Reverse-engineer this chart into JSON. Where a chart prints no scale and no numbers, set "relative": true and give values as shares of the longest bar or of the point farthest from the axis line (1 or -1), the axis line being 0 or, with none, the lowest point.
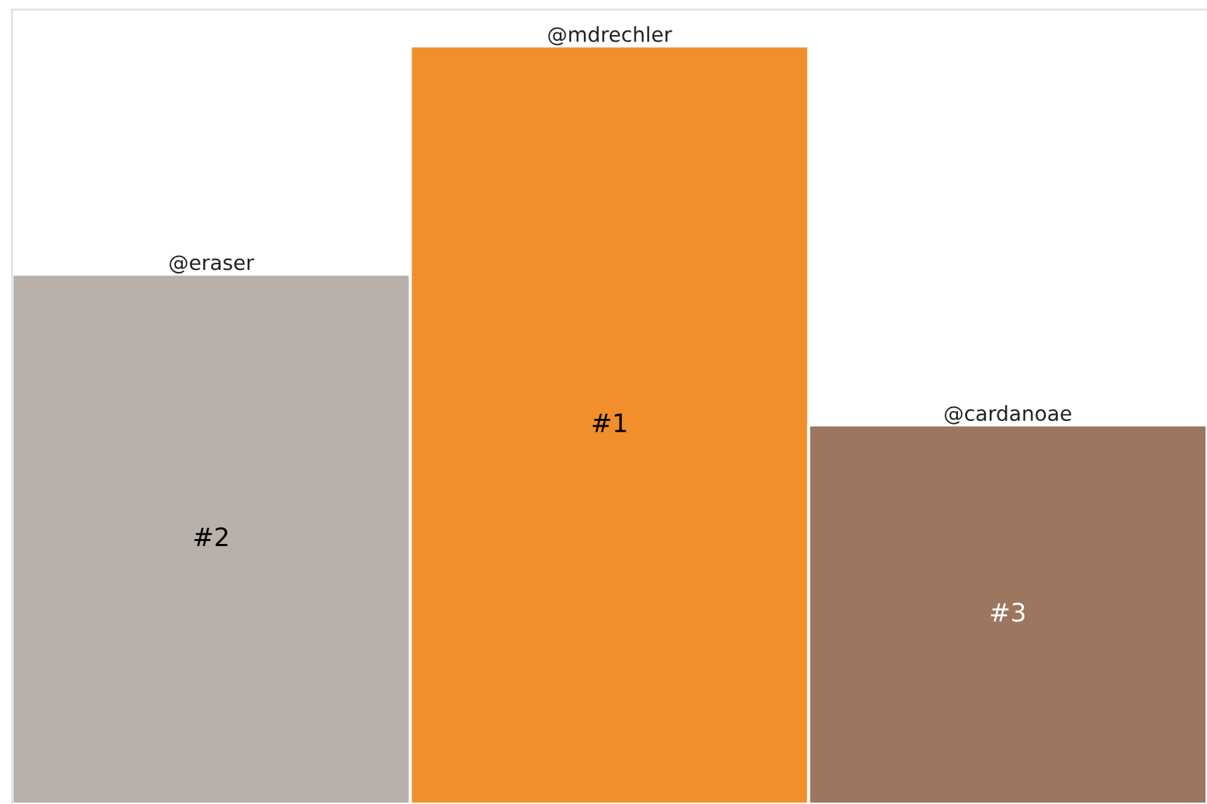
{
  "chart_data": {
    "type": "bar",
    "relative": true,
    "categories": [
      "@eraser",
      "@mdrechler",
      "@cardanoae"
    ],
    "values": [
      0.699,
      1,
      0.5
    ],
    "colors": [
      "#b9b0aa",
      "#f28e2b",
      "#9c765e"
    ],
    "annotations": [
      "#2",
      "#1",
      "#3"
    ]
  }
}
